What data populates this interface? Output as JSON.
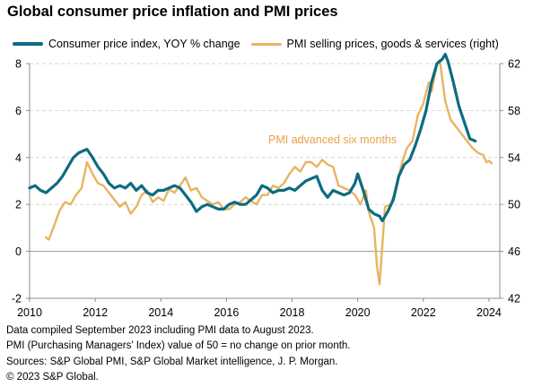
{
  "title": "Global consumer price inflation and PMI prices",
  "legend": {
    "cpi": "Consumer price index, YOY % change",
    "pmi": "PMI selling prices, goods & services (right)"
  },
  "colors": {
    "cpi": "#0d6b82",
    "pmi": "#e8b460",
    "annotation": "#e8a04a",
    "grid": "#d6d6d6",
    "axis": "#8c8c8c"
  },
  "annotation": "PMI advanced six months",
  "footer": [
    "Data compiled September 2023 including PMI data to August 2023.",
    "PMI (Purchasing Managers' Index) value of 50 = no change on prior month.",
    "Sources: S&P Global PMI, S&P Global Market intelligence, J. P. Morgan.",
    "© 2023 S&P Global."
  ],
  "chart_data": {
    "type": "line",
    "x_ticks": [
      "2010",
      "2012",
      "2014",
      "2016",
      "2018",
      "2020",
      "2022",
      "2024"
    ],
    "y_left": {
      "range": [
        -2,
        8
      ],
      "ticks": [
        "-2",
        "0",
        "2",
        "4",
        "6",
        "8"
      ]
    },
    "y_right": {
      "range": [
        42,
        62
      ],
      "ticks": [
        "42",
        "46",
        "50",
        "54",
        "58",
        "62"
      ]
    },
    "grid": "horizontal dashed",
    "series": [
      {
        "name": "Consumer price index, YOY % change",
        "axis": "left",
        "points": [
          [
            "2010-01",
            2.7
          ],
          [
            "2010-03",
            2.8
          ],
          [
            "2010-05",
            2.6
          ],
          [
            "2010-07",
            2.5
          ],
          [
            "2010-09",
            2.7
          ],
          [
            "2010-11",
            2.9
          ],
          [
            "2011-01",
            3.2
          ],
          [
            "2011-03",
            3.6
          ],
          [
            "2011-05",
            4.0
          ],
          [
            "2011-07",
            4.2
          ],
          [
            "2011-09",
            4.3
          ],
          [
            "2011-10",
            4.35
          ],
          [
            "2011-12",
            4.0
          ],
          [
            "2012-02",
            3.6
          ],
          [
            "2012-04",
            3.3
          ],
          [
            "2012-06",
            2.9
          ],
          [
            "2012-08",
            2.7
          ],
          [
            "2012-10",
            2.8
          ],
          [
            "2012-12",
            2.7
          ],
          [
            "2013-02",
            2.9
          ],
          [
            "2013-04",
            2.6
          ],
          [
            "2013-06",
            2.8
          ],
          [
            "2013-08",
            2.5
          ],
          [
            "2013-10",
            2.4
          ],
          [
            "2013-12",
            2.6
          ],
          [
            "2014-02",
            2.6
          ],
          [
            "2014-04",
            2.7
          ],
          [
            "2014-06",
            2.8
          ],
          [
            "2014-08",
            2.7
          ],
          [
            "2014-10",
            2.4
          ],
          [
            "2014-12",
            2.1
          ],
          [
            "2015-02",
            1.7
          ],
          [
            "2015-04",
            1.9
          ],
          [
            "2015-06",
            2.0
          ],
          [
            "2015-08",
            1.9
          ],
          [
            "2015-10",
            1.8
          ],
          [
            "2015-12",
            1.8
          ],
          [
            "2016-02",
            2.0
          ],
          [
            "2016-04",
            2.1
          ],
          [
            "2016-06",
            2.0
          ],
          [
            "2016-08",
            2.0
          ],
          [
            "2016-10",
            2.2
          ],
          [
            "2016-12",
            2.4
          ],
          [
            "2017-02",
            2.8
          ],
          [
            "2017-04",
            2.7
          ],
          [
            "2017-06",
            2.5
          ],
          [
            "2017-08",
            2.6
          ],
          [
            "2017-10",
            2.6
          ],
          [
            "2017-12",
            2.7
          ],
          [
            "2018-02",
            2.6
          ],
          [
            "2018-04",
            2.8
          ],
          [
            "2018-06",
            3.0
          ],
          [
            "2018-08",
            3.1
          ],
          [
            "2018-10",
            3.2
          ],
          [
            "2018-12",
            2.6
          ],
          [
            "2019-02",
            2.3
          ],
          [
            "2019-04",
            2.6
          ],
          [
            "2019-06",
            2.5
          ],
          [
            "2019-08",
            2.4
          ],
          [
            "2019-10",
            2.5
          ],
          [
            "2019-12",
            2.9
          ],
          [
            "2020-01",
            3.3
          ],
          [
            "2020-03",
            2.6
          ],
          [
            "2020-05",
            1.8
          ],
          [
            "2020-07",
            1.6
          ],
          [
            "2020-09",
            1.5
          ],
          [
            "2020-10",
            1.3
          ],
          [
            "2020-12",
            1.7
          ],
          [
            "2021-02",
            2.2
          ],
          [
            "2021-04",
            3.2
          ],
          [
            "2021-06",
            3.7
          ],
          [
            "2021-08",
            3.9
          ],
          [
            "2021-10",
            4.5
          ],
          [
            "2021-12",
            5.2
          ],
          [
            "2022-02",
            6.0
          ],
          [
            "2022-04",
            7.2
          ],
          [
            "2022-06",
            8.0
          ],
          [
            "2022-08",
            8.2
          ],
          [
            "2022-09",
            8.4
          ],
          [
            "2022-10",
            8.1
          ],
          [
            "2022-12",
            7.2
          ],
          [
            "2023-02",
            6.2
          ],
          [
            "2023-04",
            5.5
          ],
          [
            "2023-06",
            4.8
          ],
          [
            "2023-08",
            4.7
          ]
        ]
      },
      {
        "name": "PMI selling prices, goods & services (right)",
        "axis": "right",
        "points": [
          [
            "2010-07",
            47.2
          ],
          [
            "2010-08",
            47.0
          ],
          [
            "2010-10",
            48.2
          ],
          [
            "2010-12",
            49.5
          ],
          [
            "2011-02",
            50.2
          ],
          [
            "2011-04",
            50.0
          ],
          [
            "2011-06",
            50.8
          ],
          [
            "2011-08",
            51.4
          ],
          [
            "2011-10",
            53.6
          ],
          [
            "2011-12",
            52.6
          ],
          [
            "2012-02",
            51.8
          ],
          [
            "2012-04",
            51.6
          ],
          [
            "2012-06",
            51.0
          ],
          [
            "2012-08",
            50.4
          ],
          [
            "2012-10",
            49.8
          ],
          [
            "2012-12",
            50.2
          ],
          [
            "2013-02",
            49.2
          ],
          [
            "2013-04",
            49.8
          ],
          [
            "2013-06",
            50.8
          ],
          [
            "2013-08",
            51.2
          ],
          [
            "2013-10",
            50.2
          ],
          [
            "2013-12",
            50.6
          ],
          [
            "2014-02",
            50.3
          ],
          [
            "2014-04",
            51.3
          ],
          [
            "2014-06",
            51.0
          ],
          [
            "2014-08",
            51.6
          ],
          [
            "2014-10",
            52.3
          ],
          [
            "2014-12",
            51.2
          ],
          [
            "2015-02",
            51.4
          ],
          [
            "2015-04",
            50.6
          ],
          [
            "2015-06",
            50.3
          ],
          [
            "2015-08",
            50.0
          ],
          [
            "2015-10",
            50.2
          ],
          [
            "2015-12",
            49.6
          ],
          [
            "2016-02",
            49.6
          ],
          [
            "2016-04",
            50.0
          ],
          [
            "2016-06",
            50.2
          ],
          [
            "2016-08",
            50.6
          ],
          [
            "2016-10",
            50.3
          ],
          [
            "2016-12",
            50.0
          ],
          [
            "2017-02",
            50.8
          ],
          [
            "2017-04",
            50.8
          ],
          [
            "2017-06",
            51.6
          ],
          [
            "2017-08",
            51.4
          ],
          [
            "2017-10",
            51.8
          ],
          [
            "2017-12",
            52.6
          ],
          [
            "2018-02",
            53.2
          ],
          [
            "2018-04",
            52.8
          ],
          [
            "2018-06",
            53.6
          ],
          [
            "2018-08",
            53.6
          ],
          [
            "2018-10",
            53.2
          ],
          [
            "2018-12",
            53.8
          ],
          [
            "2019-02",
            53.4
          ],
          [
            "2019-04",
            53.2
          ],
          [
            "2019-06",
            51.6
          ],
          [
            "2019-08",
            51.4
          ],
          [
            "2019-10",
            51.2
          ],
          [
            "2019-12",
            50.8
          ],
          [
            "2020-02",
            50.0
          ],
          [
            "2020-04",
            51.2
          ],
          [
            "2020-05",
            49.4
          ],
          [
            "2020-07",
            48.0
          ],
          [
            "2020-08",
            44.8
          ],
          [
            "2020-09",
            43.2
          ],
          [
            "2020-10",
            46.5
          ],
          [
            "2020-11",
            49.8
          ],
          [
            "2021-01",
            50.0
          ],
          [
            "2021-03",
            51.2
          ],
          [
            "2021-05",
            53.4
          ],
          [
            "2021-07",
            54.8
          ],
          [
            "2021-09",
            55.4
          ],
          [
            "2021-11",
            57.6
          ],
          [
            "2022-01",
            58.6
          ],
          [
            "2022-03",
            60.4
          ],
          [
            "2022-04",
            59.6
          ],
          [
            "2022-06",
            62.0
          ],
          [
            "2022-07",
            62.3
          ],
          [
            "2022-09",
            58.8
          ],
          [
            "2022-11",
            57.2
          ],
          [
            "2023-01",
            56.6
          ],
          [
            "2023-03",
            56.0
          ],
          [
            "2023-05",
            55.4
          ],
          [
            "2023-07",
            54.8
          ],
          [
            "2023-09",
            54.4
          ],
          [
            "2023-11",
            54.2
          ],
          [
            "2023-12",
            53.6
          ],
          [
            "2024-01",
            53.7
          ],
          [
            "2024-02",
            53.5
          ]
        ]
      }
    ]
  }
}
